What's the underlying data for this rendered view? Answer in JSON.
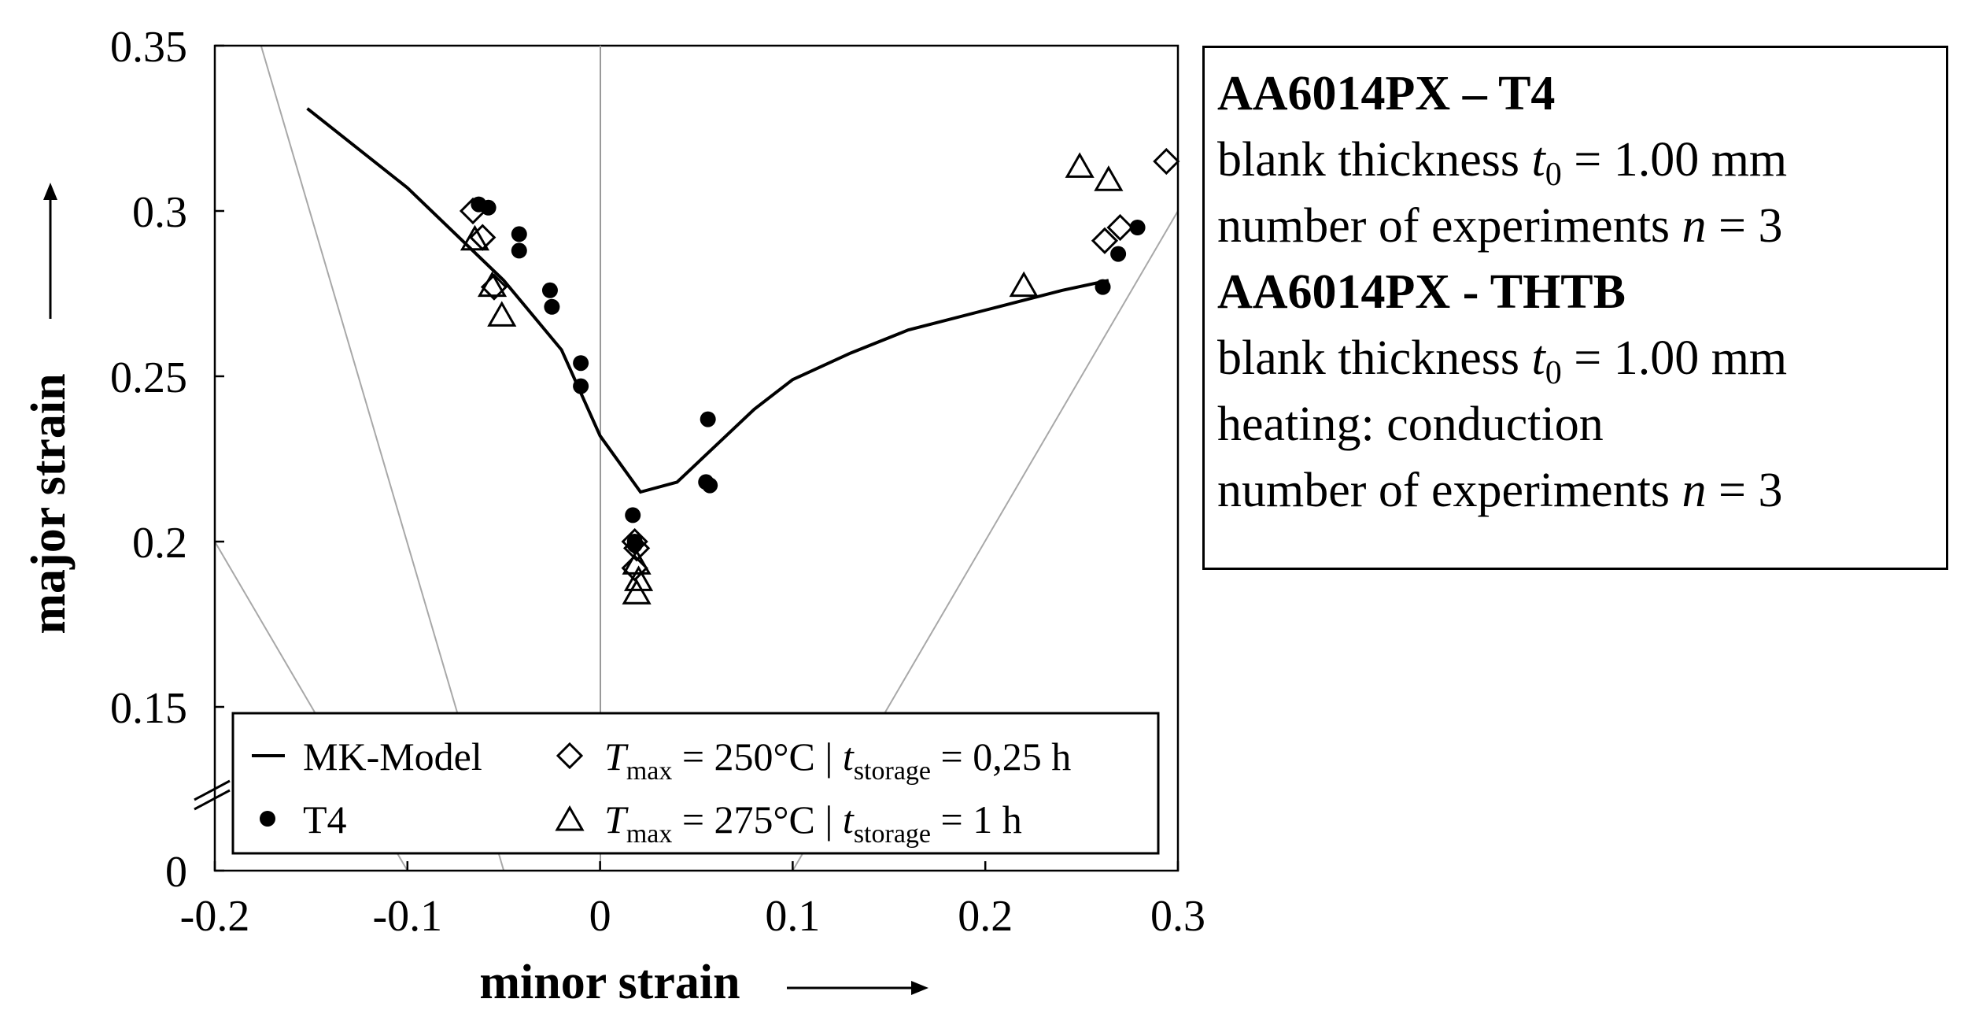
{
  "chart_data": {
    "type": "scatter",
    "xlabel": "minor strain",
    "ylabel": "major strain",
    "xlim": [
      -0.2,
      0.3
    ],
    "ylim": [
      0,
      0.35
    ],
    "y_axis_break": "between 0 and 0.15",
    "x_ticks": [
      "-0.2",
      "-0.1",
      "0",
      "0.1",
      "0.2",
      "0.3"
    ],
    "y_ticks": [
      "0",
      "0.15",
      "0.2",
      "0.25",
      "0.3",
      "0.35"
    ],
    "legend": {
      "placement": "bottom-center",
      "mk_label": "MK-Model",
      "t4_label": "T4",
      "s250": {
        "pre": "",
        "T": "T",
        "Tsub": "max",
        "mid": " = 250°C | ",
        "t": "t",
        "tsub": "storage",
        "post": " = 0,25 h"
      },
      "s275": {
        "pre": "",
        "T": "T",
        "Tsub": "max",
        "mid": " = 275°C | ",
        "t": "t",
        "tsub": "storage",
        "post": " = 1 h"
      }
    },
    "series": [
      {
        "name": "MK-Model",
        "type": "line",
        "x": [
          -0.152,
          -0.1,
          -0.05,
          -0.02,
          0.0,
          0.021,
          0.04,
          0.06,
          0.08,
          0.1,
          0.13,
          0.16,
          0.2,
          0.24,
          0.264
        ],
        "y": [
          0.331,
          0.307,
          0.279,
          0.258,
          0.232,
          0.215,
          0.218,
          0.229,
          0.24,
          0.249,
          0.257,
          0.264,
          0.27,
          0.276,
          0.279
        ]
      },
      {
        "name": "T4",
        "type": "scatter",
        "marker": "filled-circle",
        "x": [
          -0.063,
          -0.058,
          -0.042,
          -0.042,
          -0.026,
          -0.025,
          -0.01,
          -0.01,
          0.017,
          0.018,
          0.018,
          0.056,
          0.055,
          0.057,
          0.261,
          0.269,
          0.279
        ],
        "y": [
          0.302,
          0.301,
          0.293,
          0.288,
          0.276,
          0.271,
          0.254,
          0.247,
          0.208,
          0.2,
          0.199,
          0.237,
          0.218,
          0.217,
          0.277,
          0.287,
          0.295
        ]
      },
      {
        "name": "Tmax = 250°C | tstorage = 0,25 h",
        "type": "scatter",
        "marker": "open-diamond",
        "x": [
          -0.066,
          -0.061,
          -0.055,
          0.018,
          0.019,
          0.018,
          0.262,
          0.27,
          0.294
        ],
        "y": [
          0.3,
          0.292,
          0.277,
          0.2,
          0.198,
          0.192,
          0.291,
          0.295,
          0.315
        ]
      },
      {
        "name": "Tmax = 275°C | tstorage = 1 h",
        "type": "scatter",
        "marker": "open-triangle",
        "x": [
          -0.065,
          -0.056,
          -0.051,
          0.019,
          0.02,
          0.019,
          0.22,
          0.249,
          0.264
        ],
        "y": [
          0.291,
          0.277,
          0.268,
          0.193,
          0.188,
          0.184,
          0.277,
          0.313,
          0.309
        ]
      }
    ]
  },
  "info": {
    "heading1": "AA6014PX – T4",
    "t4_thickness": {
      "pre": "blank thickness ",
      "var": "t",
      "sub": "0",
      "post": " = 1.00 mm"
    },
    "t4_experiments": {
      "pre": "number of experiments ",
      "var": "n",
      "post": " = 3"
    },
    "heading2": "AA6014PX - THTB",
    "thtb_thickness": {
      "pre": "blank thickness ",
      "var": "t",
      "sub": "0",
      "post": " = 1.00 mm"
    },
    "thtb_heating": "heating: conduction",
    "thtb_experiments": {
      "pre": "number of experiments ",
      "var": "n",
      "post": " = 3"
    }
  }
}
